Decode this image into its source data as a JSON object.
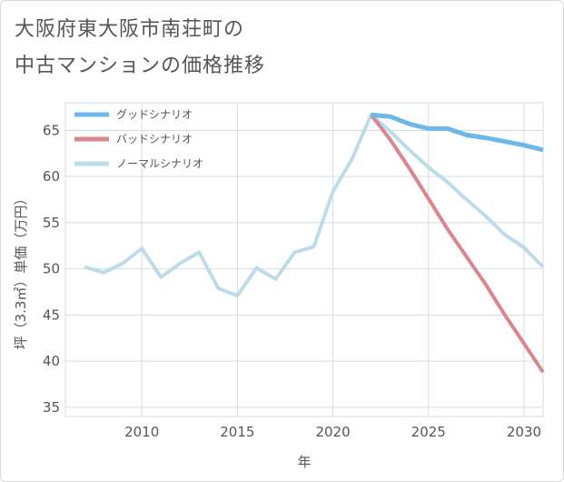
{
  "page": {
    "title_line1": "大阪府東大阪市南荘町の",
    "title_line2": "中古マンションの価格推移"
  },
  "chart_data": {
    "type": "line",
    "title": "大阪府東大阪市南荘町の中古マンションの価格推移",
    "xlabel": "年",
    "ylabel": "坪（3.3㎡）単価（万円）",
    "xlim": [
      2006,
      2031
    ],
    "ylim": [
      34,
      68
    ],
    "xticks": [
      2010,
      2015,
      2020,
      2025,
      2030
    ],
    "yticks": [
      35,
      40,
      45,
      50,
      55,
      60,
      65
    ],
    "grid": true,
    "legend_position": "top-left",
    "series": [
      {
        "name": "グッドシナリオ",
        "color": "#6cb8ea",
        "width": 5,
        "x": [
          2022,
          2023,
          2024,
          2025,
          2026,
          2027,
          2028,
          2029,
          2030,
          2031
        ],
        "y": [
          66.7,
          66.5,
          65.7,
          65.2,
          65.2,
          64.5,
          64.2,
          63.8,
          63.4,
          62.9
        ]
      },
      {
        "name": "バッドシナリオ",
        "color": "#d9868f",
        "width": 4,
        "x": [
          2022,
          2023,
          2024,
          2025,
          2026,
          2027,
          2028,
          2029,
          2030,
          2031
        ],
        "y": [
          66.7,
          64.0,
          60.9,
          57.6,
          54.3,
          51.3,
          48.3,
          45.0,
          41.9,
          38.8
        ]
      },
      {
        "name": "ノーマルシナリオ",
        "color": "#bcdcea",
        "width": 4,
        "x": [
          2007,
          2008,
          2009,
          2010,
          2011,
          2012,
          2013,
          2014,
          2015,
          2016,
          2017,
          2018,
          2019,
          2020,
          2021,
          2022,
          2023,
          2024,
          2025,
          2026,
          2027,
          2028,
          2029,
          2030,
          2031
        ],
        "y": [
          50.2,
          49.6,
          50.6,
          52.2,
          49.1,
          50.6,
          51.8,
          47.9,
          47.1,
          50.1,
          48.9,
          51.8,
          52.4,
          58.4,
          61.9,
          66.7,
          64.9,
          62.9,
          61.0,
          59.4,
          57.5,
          55.7,
          53.7,
          52.3,
          50.2
        ]
      }
    ]
  }
}
